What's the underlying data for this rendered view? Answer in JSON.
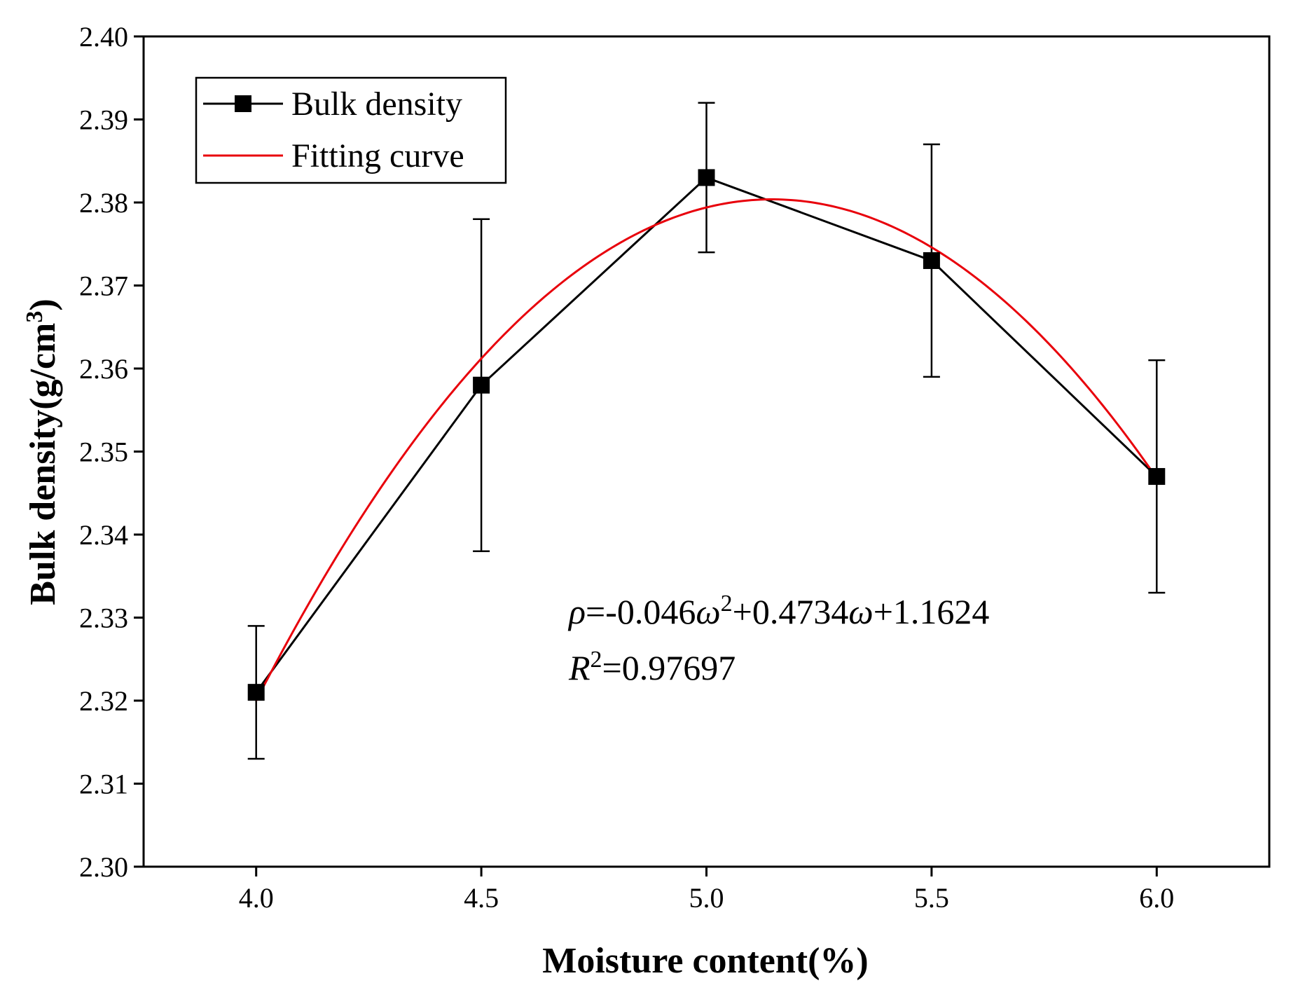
{
  "chart_data": {
    "type": "line",
    "title": "",
    "xlabel": "Moisture content(%)",
    "ylabel": "Bulk density(g/cm",
    "ylabel_superscript": "3",
    "ylabel_close": ")",
    "xlim": [
      3.75,
      6.25
    ],
    "ylim": [
      2.3,
      2.4
    ],
    "x_ticks": [
      4.0,
      4.5,
      5.0,
      5.5,
      6.0
    ],
    "x_tick_labels": [
      "4.0",
      "4.5",
      "5.0",
      "5.5",
      "6.0"
    ],
    "y_ticks": [
      2.3,
      2.31,
      2.32,
      2.33,
      2.34,
      2.35,
      2.36,
      2.37,
      2.38,
      2.39,
      2.4
    ],
    "y_tick_labels": [
      "2.30",
      "2.31",
      "2.32",
      "2.33",
      "2.34",
      "2.35",
      "2.36",
      "2.37",
      "2.38",
      "2.39",
      "2.40"
    ],
    "grid": false,
    "legend_position": "top-left",
    "series": [
      {
        "name": "Bulk density",
        "type": "line-marker",
        "color": "#000000",
        "marker": "square",
        "x": [
          4.0,
          4.5,
          5.0,
          5.5,
          6.0
        ],
        "y": [
          2.321,
          2.358,
          2.383,
          2.373,
          2.347
        ],
        "error_low": [
          2.313,
          2.338,
          2.374,
          2.359,
          2.333
        ],
        "error_high": [
          2.329,
          2.378,
          2.392,
          2.387,
          2.361
        ]
      },
      {
        "name": "Fitting curve",
        "type": "fit",
        "color": "#e8000b",
        "coefficients": {
          "a": -0.046,
          "b": 0.4734,
          "c": 1.1624
        },
        "x_range": [
          4.0,
          6.0
        ]
      }
    ],
    "annotation": {
      "rho": "ρ",
      "eq_part1": "=-0.046",
      "omega1": "ω",
      "sup2": "2",
      "eq_part2": "+0.4734",
      "omega2": "ω",
      "eq_part3": "+1.1624",
      "r": "R",
      "r_sup": "2",
      "r_value": "=0.97697"
    }
  }
}
